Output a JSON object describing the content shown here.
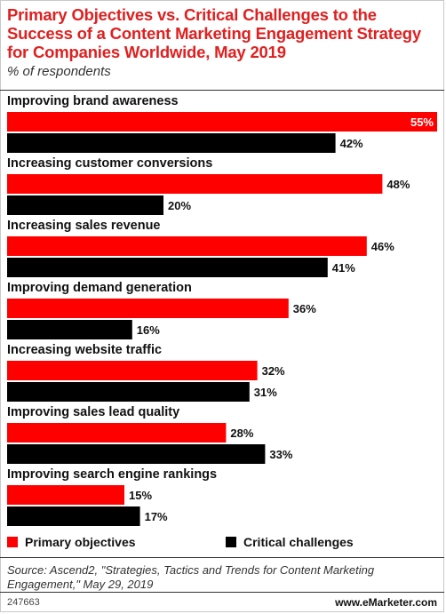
{
  "header": {
    "title": "Primary Objectives vs. Critical Challenges to the Success of a Content Marketing Engagement Strategy for Companies Worldwide, May 2019",
    "subtitle": "% of respondents"
  },
  "legend": {
    "primary_label": "Primary objectives",
    "critical_label": "Critical challenges"
  },
  "footer": {
    "source": "Source: Ascend2, \"Strategies, Tactics and Trends for Content Marketing Engagement,\" May 29, 2019",
    "chart_id": "247663",
    "brand": "www.eMarketer.com"
  },
  "colors": {
    "primary": "#ff0000",
    "critical": "#000000",
    "title": "#e02020"
  },
  "chart_data": {
    "type": "bar",
    "orientation": "horizontal",
    "categories": [
      "Improving brand awareness",
      "Increasing customer conversions",
      "Increasing sales revenue",
      "Improving demand generation",
      "Increasing website traffic",
      "Improving sales lead quality",
      "Improving search engine rankings"
    ],
    "series": [
      {
        "name": "Primary objectives",
        "values": [
          55,
          48,
          46,
          36,
          32,
          28,
          15
        ]
      },
      {
        "name": "Critical challenges",
        "values": [
          42,
          20,
          41,
          16,
          31,
          33,
          17
        ]
      }
    ],
    "value_suffix": "%",
    "xlim": [
      0,
      55
    ],
    "legend_position": "bottom"
  }
}
